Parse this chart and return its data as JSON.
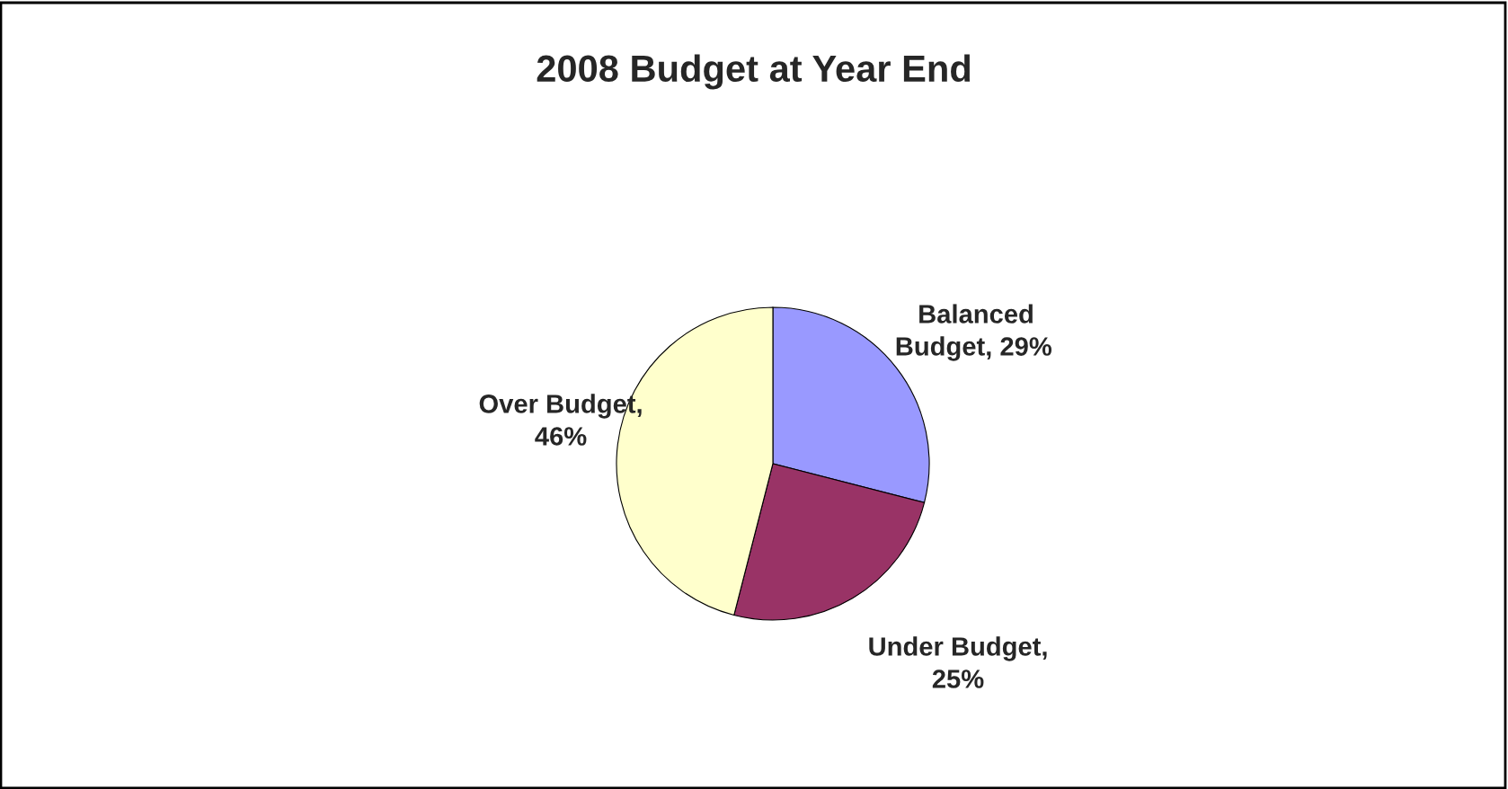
{
  "chart_data": {
    "type": "pie",
    "title": "2008 Budget at Year End",
    "categories": [
      "Balanced Budget",
      "Under Budget",
      "Over Budget"
    ],
    "values": [
      29,
      25,
      46
    ],
    "value_labels": [
      ", 29%",
      ",\n25%",
      ",\n46%"
    ],
    "colors": [
      "#9999ff",
      "#993366",
      "#ffffcc"
    ]
  }
}
